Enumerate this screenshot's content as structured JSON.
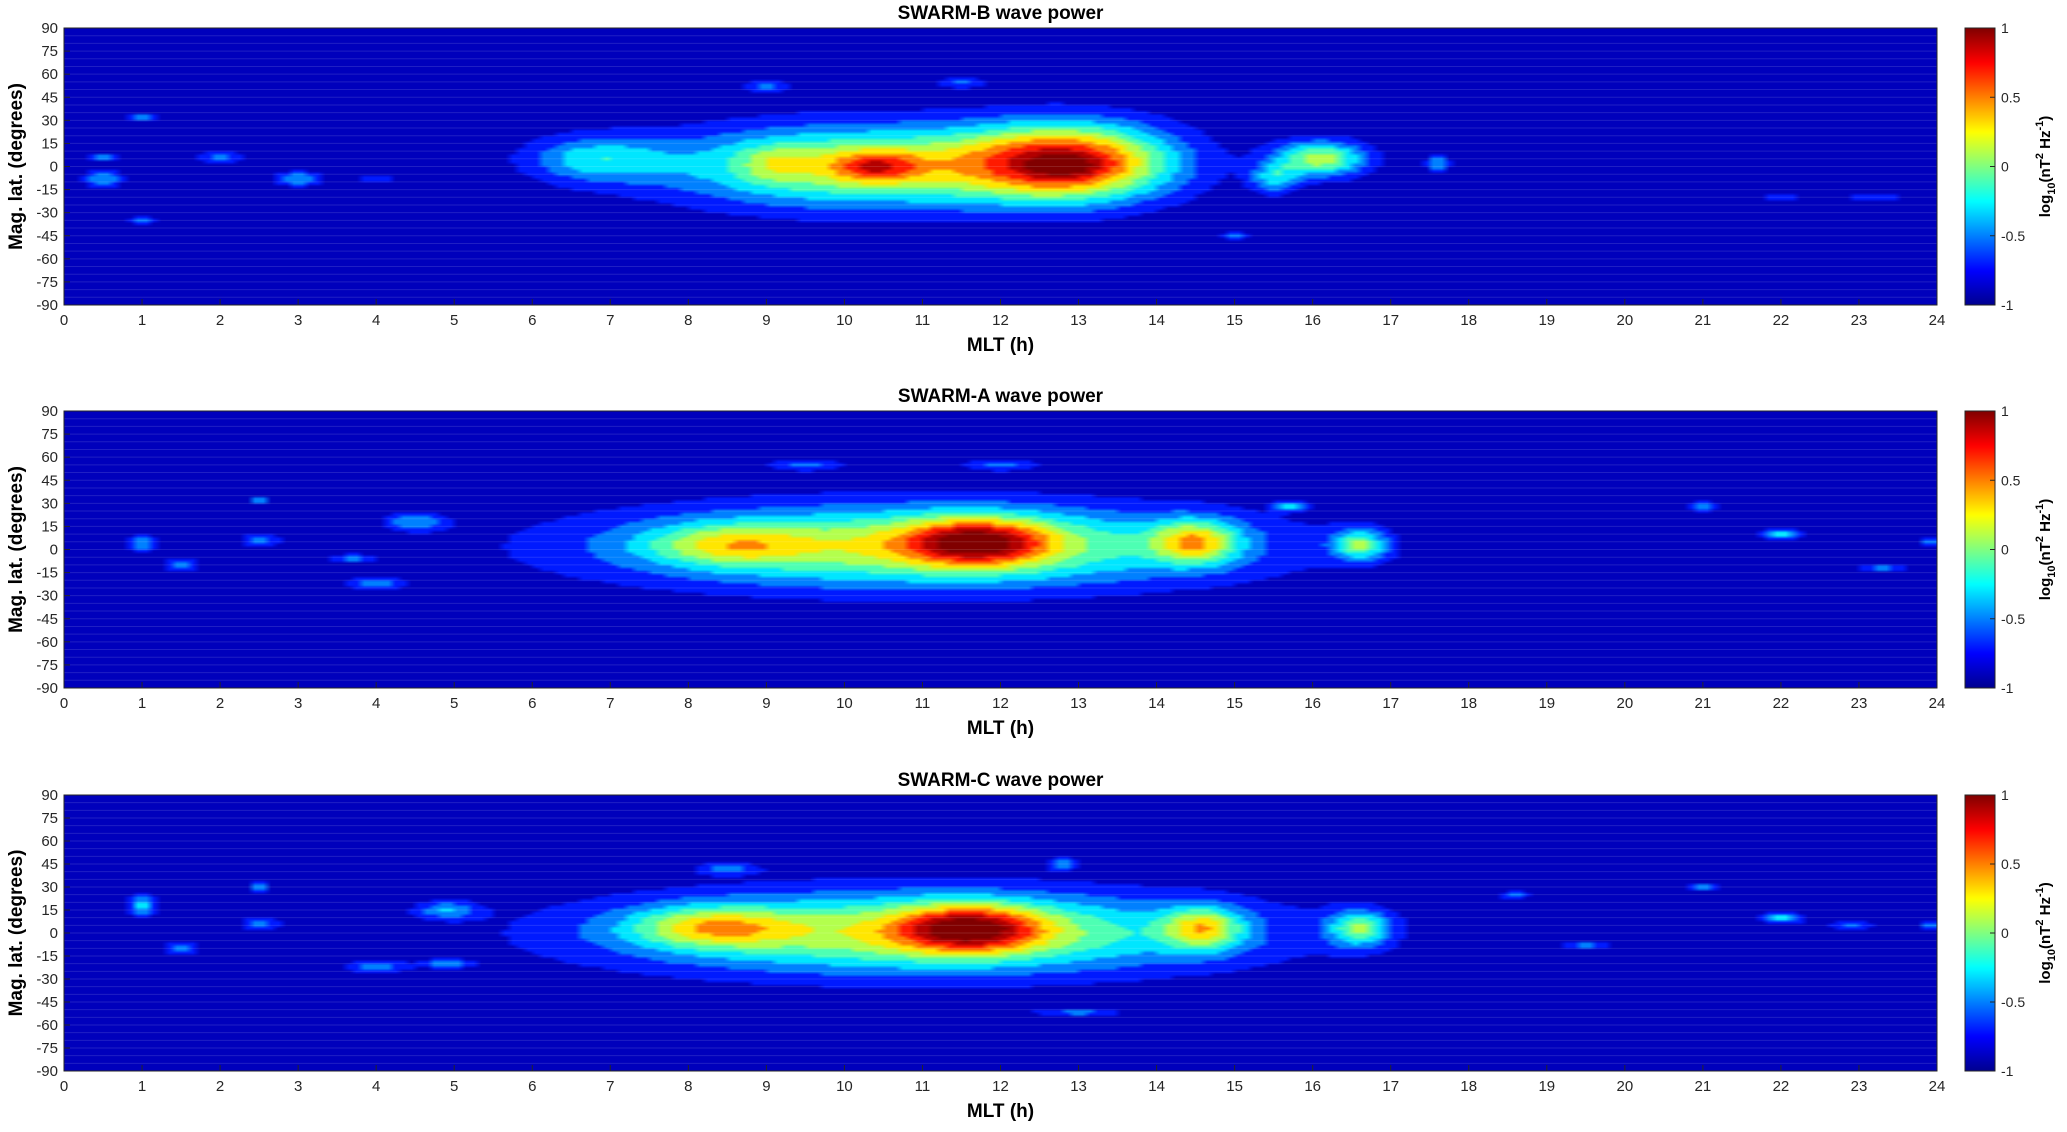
{
  "colors": {
    "background": "#00008f",
    "jet": [
      "#00008f",
      "#0000ff",
      "#0080ff",
      "#00ffff",
      "#80ff80",
      "#ffff00",
      "#ff8000",
      "#ff0000",
      "#800000"
    ]
  },
  "chart_data": [
    {
      "type": "heatmap",
      "title": "SWARM-B wave power",
      "xlabel": "MLT (h)",
      "ylabel": "Mag. lat. (degrees)",
      "xlim": [
        0,
        24
      ],
      "ylim": [
        -90,
        90
      ],
      "xticks": [
        "0",
        "1",
        "2",
        "3",
        "4",
        "5",
        "6",
        "7",
        "8",
        "9",
        "10",
        "11",
        "12",
        "13",
        "14",
        "15",
        "16",
        "17",
        "18",
        "19",
        "20",
        "21",
        "22",
        "23",
        "24"
      ],
      "yticks": [
        "90",
        "75",
        "60",
        "45",
        "30",
        "15",
        "0",
        "-15",
        "-30",
        "-45",
        "-60",
        "-75",
        "-90"
      ],
      "colorbar": {
        "label": "log10(nT^2 Hz^-1)",
        "lim": [
          -1,
          1
        ],
        "ticks": [
          "1",
          "0.5",
          "0",
          "-0.5",
          "-1"
        ]
      },
      "blobs": [
        {
          "mlt": 10.3,
          "lat": 0,
          "smlt": 2.6,
          "slat": 27,
          "amp": 1.2
        },
        {
          "mlt": 12.9,
          "lat": 3,
          "smlt": 1.3,
          "slat": 25,
          "amp": 1.55
        },
        {
          "mlt": 10.4,
          "lat": 0,
          "smlt": 0.55,
          "slat": 10,
          "amp": 0.65
        },
        {
          "mlt": 9.1,
          "lat": 2,
          "smlt": 0.45,
          "slat": 12,
          "amp": 0.3
        },
        {
          "mlt": 12.8,
          "lat": 0,
          "smlt": 0.45,
          "slat": 8,
          "amp": 0.3
        },
        {
          "mlt": 6.8,
          "lat": 5,
          "smlt": 0.9,
          "slat": 15,
          "amp": 0.6
        },
        {
          "mlt": 16.1,
          "lat": 5,
          "smlt": 0.6,
          "slat": 12,
          "amp": 1.1
        },
        {
          "mlt": 15.5,
          "lat": -8,
          "smlt": 0.3,
          "slat": 10,
          "amp": 0.6
        },
        {
          "mlt": 17.6,
          "lat": 2,
          "smlt": 0.15,
          "slat": 6,
          "amp": 0.6
        },
        {
          "mlt": 0.5,
          "lat": -8,
          "smlt": 0.25,
          "slat": 6,
          "amp": 0.6
        },
        {
          "mlt": 0.5,
          "lat": 6,
          "smlt": 0.2,
          "slat": 3,
          "amp": 0.5
        },
        {
          "mlt": 1.0,
          "lat": 32,
          "smlt": 0.2,
          "slat": 3,
          "amp": 0.5
        },
        {
          "mlt": 2.0,
          "lat": 6,
          "smlt": 0.25,
          "slat": 4,
          "amp": 0.6
        },
        {
          "mlt": 3.0,
          "lat": -8,
          "smlt": 0.3,
          "slat": 5,
          "amp": 0.6
        },
        {
          "mlt": 4.0,
          "lat": -8,
          "smlt": 0.2,
          "slat": 3,
          "amp": 0.45
        },
        {
          "mlt": 1.0,
          "lat": -35,
          "smlt": 0.2,
          "slat": 3,
          "amp": 0.45
        },
        {
          "mlt": 22.0,
          "lat": -20,
          "smlt": 0.2,
          "slat": 3,
          "amp": 0.45
        },
        {
          "mlt": 23.2,
          "lat": -20,
          "smlt": 0.3,
          "slat": 3,
          "amp": 0.45
        },
        {
          "mlt": 9.0,
          "lat": 52,
          "smlt": 0.3,
          "slat": 4,
          "amp": 0.45
        },
        {
          "mlt": 11.5,
          "lat": 55,
          "smlt": 0.3,
          "slat": 4,
          "amp": 0.45
        },
        {
          "mlt": 15.0,
          "lat": -45,
          "smlt": 0.2,
          "slat": 3,
          "amp": 0.45
        }
      ]
    },
    {
      "type": "heatmap",
      "title": "SWARM-A wave power",
      "xlabel": "MLT (h)",
      "ylabel": "Mag. lat. (degrees)",
      "xlim": [
        0,
        24
      ],
      "ylim": [
        -90,
        90
      ],
      "xticks": [
        "0",
        "1",
        "2",
        "3",
        "4",
        "5",
        "6",
        "7",
        "8",
        "9",
        "10",
        "11",
        "12",
        "13",
        "14",
        "15",
        "16",
        "17",
        "18",
        "19",
        "20",
        "21",
        "22",
        "23",
        "24"
      ],
      "yticks": [
        "90",
        "75",
        "60",
        "45",
        "30",
        "15",
        "0",
        "-15",
        "-30",
        "-45",
        "-60",
        "-75",
        "-90"
      ],
      "colorbar": {
        "label": "log10(nT^2 Hz^-1)",
        "lim": [
          -1,
          1
        ],
        "ticks": [
          "1",
          "0.5",
          "0",
          "-0.5",
          "-1"
        ]
      },
      "blobs": [
        {
          "mlt": 11.0,
          "lat": 2,
          "smlt": 4.0,
          "slat": 27,
          "amp": 1.2
        },
        {
          "mlt": 11.7,
          "lat": 5,
          "smlt": 0.9,
          "slat": 15,
          "amp": 1.15
        },
        {
          "mlt": 8.5,
          "lat": 3,
          "smlt": 1.0,
          "slat": 13,
          "amp": 0.6
        },
        {
          "mlt": 14.5,
          "lat": 5,
          "smlt": 0.55,
          "slat": 14,
          "amp": 0.95
        },
        {
          "mlt": 16.6,
          "lat": 3,
          "smlt": 0.35,
          "slat": 10,
          "amp": 0.9
        },
        {
          "mlt": 1.0,
          "lat": 4,
          "smlt": 0.2,
          "slat": 5,
          "amp": 0.65
        },
        {
          "mlt": 1.5,
          "lat": -10,
          "smlt": 0.25,
          "slat": 4,
          "amp": 0.55
        },
        {
          "mlt": 2.5,
          "lat": 6,
          "smlt": 0.25,
          "slat": 4,
          "amp": 0.55
        },
        {
          "mlt": 4.5,
          "lat": 18,
          "smlt": 0.4,
          "slat": 6,
          "amp": 0.55
        },
        {
          "mlt": 4.0,
          "lat": -22,
          "smlt": 0.4,
          "slat": 4,
          "amp": 0.55
        },
        {
          "mlt": 3.7,
          "lat": -6,
          "smlt": 0.3,
          "slat": 3,
          "amp": 0.45
        },
        {
          "mlt": 2.5,
          "lat": 32,
          "smlt": 0.15,
          "slat": 3,
          "amp": 0.5
        },
        {
          "mlt": 15.7,
          "lat": 28,
          "smlt": 0.2,
          "slat": 3,
          "amp": 0.6
        },
        {
          "mlt": 21.0,
          "lat": 28,
          "smlt": 0.25,
          "slat": 3,
          "amp": 0.6
        },
        {
          "mlt": 22.0,
          "lat": 10,
          "smlt": 0.25,
          "slat": 4,
          "amp": 0.7
        },
        {
          "mlt": 23.3,
          "lat": -12,
          "smlt": 0.3,
          "slat": 3,
          "amp": 0.5
        },
        {
          "mlt": 23.9,
          "lat": 5,
          "smlt": 0.15,
          "slat": 4,
          "amp": 0.5
        },
        {
          "mlt": 9.5,
          "lat": 55,
          "smlt": 0.5,
          "slat": 4,
          "amp": 0.45
        },
        {
          "mlt": 12.0,
          "lat": 55,
          "smlt": 0.5,
          "slat": 4,
          "amp": 0.45
        }
      ]
    },
    {
      "type": "heatmap",
      "title": "SWARM-C wave power",
      "xlabel": "MLT (h)",
      "ylabel": "Mag. lat. (degrees)",
      "xlim": [
        0,
        24
      ],
      "ylim": [
        -90,
        90
      ],
      "xticks": [
        "0",
        "1",
        "2",
        "3",
        "4",
        "5",
        "6",
        "7",
        "8",
        "9",
        "10",
        "11",
        "12",
        "13",
        "14",
        "15",
        "16",
        "17",
        "18",
        "19",
        "20",
        "21",
        "22",
        "23",
        "24"
      ],
      "yticks": [
        "90",
        "75",
        "60",
        "45",
        "30",
        "15",
        "0",
        "-15",
        "-30",
        "-45",
        "-60",
        "-75",
        "-90"
      ],
      "colorbar": {
        "label": "log10(nT^2 Hz^-1)",
        "lim": [
          -1,
          1
        ],
        "ticks": [
          "1",
          "0.5",
          "0",
          "-0.5",
          "-1"
        ]
      },
      "blobs": [
        {
          "mlt": 11.0,
          "lat": 0,
          "smlt": 4.0,
          "slat": 27,
          "amp": 1.2
        },
        {
          "mlt": 11.6,
          "lat": 3,
          "smlt": 0.9,
          "slat": 15,
          "amp": 1.15
        },
        {
          "mlt": 8.3,
          "lat": 4,
          "smlt": 1.0,
          "slat": 13,
          "amp": 0.75
        },
        {
          "mlt": 14.6,
          "lat": 3,
          "smlt": 0.5,
          "slat": 14,
          "amp": 0.9
        },
        {
          "mlt": 16.6,
          "lat": 3,
          "smlt": 0.4,
          "slat": 12,
          "amp": 0.9
        },
        {
          "mlt": 1.0,
          "lat": 18,
          "smlt": 0.2,
          "slat": 8,
          "amp": 0.65
        },
        {
          "mlt": 1.5,
          "lat": -10,
          "smlt": 0.25,
          "slat": 4,
          "amp": 0.55
        },
        {
          "mlt": 2.5,
          "lat": 6,
          "smlt": 0.25,
          "slat": 4,
          "amp": 0.55
        },
        {
          "mlt": 2.5,
          "lat": 30,
          "smlt": 0.15,
          "slat": 4,
          "amp": 0.55
        },
        {
          "mlt": 4.9,
          "lat": 15,
          "smlt": 0.4,
          "slat": 6,
          "amp": 0.55
        },
        {
          "mlt": 4.0,
          "lat": -22,
          "smlt": 0.4,
          "slat": 4,
          "amp": 0.55
        },
        {
          "mlt": 4.9,
          "lat": -20,
          "smlt": 0.3,
          "slat": 3,
          "amp": 0.55
        },
        {
          "mlt": 18.6,
          "lat": 25,
          "smlt": 0.2,
          "slat": 3,
          "amp": 0.5
        },
        {
          "mlt": 21.0,
          "lat": 30,
          "smlt": 0.25,
          "slat": 3,
          "amp": 0.5
        },
        {
          "mlt": 22.0,
          "lat": 10,
          "smlt": 0.3,
          "slat": 4,
          "amp": 0.7
        },
        {
          "mlt": 22.9,
          "lat": 5,
          "smlt": 0.3,
          "slat": 3,
          "amp": 0.5
        },
        {
          "mlt": 23.9,
          "lat": 5,
          "smlt": 0.15,
          "slat": 4,
          "amp": 0.5
        },
        {
          "mlt": 19.5,
          "lat": -8,
          "smlt": 0.3,
          "slat": 3,
          "amp": 0.5
        },
        {
          "mlt": 8.5,
          "lat": 42,
          "smlt": 0.4,
          "slat": 4,
          "amp": 0.45
        },
        {
          "mlt": 13.0,
          "lat": -52,
          "smlt": 0.6,
          "slat": 3,
          "amp": 0.45
        },
        {
          "mlt": 12.8,
          "lat": 45,
          "smlt": 0.2,
          "slat": 4,
          "amp": 0.5
        }
      ]
    }
  ]
}
